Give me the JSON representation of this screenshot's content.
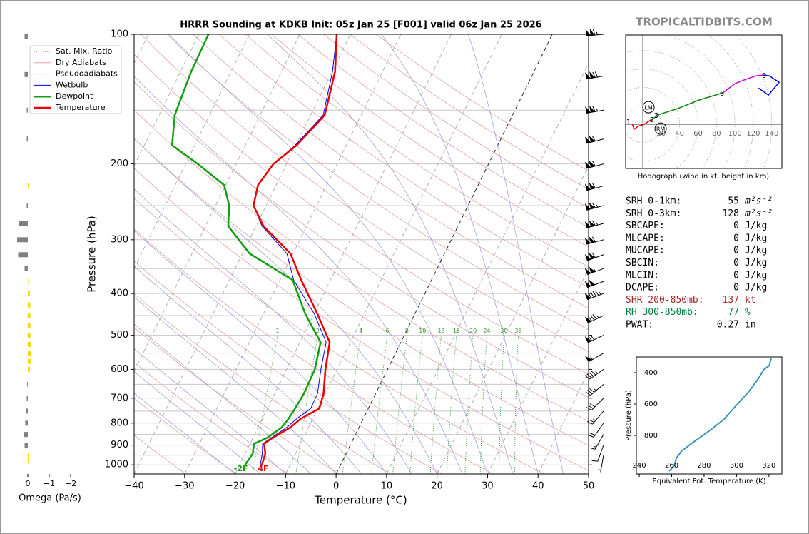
{
  "header": {
    "site": "TROPICALTIDBITS.COM"
  },
  "chart_data": [
    {
      "type": "skewt",
      "title": "HRRR Sounding at KDKB Init: 05z Jan 25 [F001] valid 06z Jan 25 2026",
      "xlabel": "Temperature (°C)",
      "ylabel": "Pressure (hPa)",
      "xlim": [
        -40,
        50
      ],
      "xticks": [
        {
          "value": -40,
          "label": "−40"
        },
        {
          "value": -30,
          "label": "−30"
        },
        {
          "value": -20,
          "label": "−20"
        },
        {
          "value": -10,
          "label": "−10"
        },
        0,
        10,
        20,
        30,
        40,
        50
      ],
      "ylim": [
        1050,
        100
      ],
      "log_y": true,
      "yticks": [
        100,
        200,
        300,
        400,
        500,
        600,
        700,
        800,
        900,
        1000
      ],
      "y_minor_ticks": [
        150,
        250,
        350,
        450,
        550,
        650,
        750,
        850,
        950
      ],
      "grid": true,
      "y": [
        100,
        122,
        154,
        181,
        200,
        224,
        250,
        279,
        323,
        372,
        446,
        519,
        600,
        684,
        740,
        782,
        819,
        866,
        893,
        942,
        1000
      ],
      "reference_lines": [
        {
          "name": "Sat. Mix. Ratio",
          "color": "#2e9a2e",
          "values": [
            1,
            2,
            4,
            6,
            8,
            10,
            13,
            16,
            20,
            24,
            30,
            36
          ]
        },
        {
          "name": "Dry Adiabats",
          "color": "#e2a4a4"
        },
        {
          "name": "Pseudoadiabats",
          "color": "#a4a4e2"
        }
      ],
      "series": [
        {
          "name": "Wetbulb",
          "color": "#0000ee",
          "width": 1,
          "values": [
            -42.7,
            -39.9,
            -37.5,
            -40.1,
            -42.6,
            -43.6,
            -42.5,
            -38.8,
            -31.2,
            -27.3,
            -19.9,
            -14.8,
            -13.2,
            -11.5,
            -11.4,
            -13.2,
            -14.3,
            -16.4,
            -17.5,
            -16.6,
            -15.9
          ]
        },
        {
          "name": "Dewpoint",
          "color": "#10a010",
          "width": 2.5,
          "values": [
            -68.1,
            -67.9,
            -66.9,
            -64.5,
            -57.6,
            -50.3,
            -47.3,
            -45.5,
            -38.6,
            -27.5,
            -21.7,
            -15.9,
            -14.4,
            -14.2,
            -14.5,
            -14.8,
            -15.3,
            -17.2,
            -19.2,
            -18.5,
            -18.9
          ]
        },
        {
          "name": "Temperature",
          "color": "#ee0000",
          "width": 2.5,
          "values": [
            -42.7,
            -39.4,
            -37.2,
            -39.8,
            -42.6,
            -43.6,
            -42.5,
            -38.5,
            -30.5,
            -25.8,
            -19.3,
            -14.1,
            -12.3,
            -10.3,
            -9.7,
            -12.4,
            -13.6,
            -16.1,
            -17.2,
            -16.0,
            -15.6
          ]
        }
      ],
      "annotations": [
        {
          "text": "-2F",
          "series": 1
        },
        {
          "text": "4F",
          "series": 2
        }
      ],
      "winds": {
        "pressure": [
          100,
          125,
          150,
          175,
          200,
          225,
          250,
          275,
          300,
          325,
          350,
          375,
          400,
          450,
          500,
          550,
          600,
          650,
          700,
          750,
          800,
          850,
          900,
          950
        ],
        "speed": [
          115,
          120,
          115,
          110,
          110,
          110,
          115,
          115,
          110,
          110,
          105,
          100,
          95,
          85,
          70,
          55,
          45,
          35,
          30,
          25,
          20,
          15,
          10,
          5
        ],
        "direction": [
          265,
          260,
          260,
          255,
          255,
          255,
          255,
          255,
          255,
          250,
          250,
          250,
          250,
          245,
          245,
          240,
          235,
          230,
          225,
          220,
          215,
          210,
          200,
          190
        ]
      },
      "legend": "upper left"
    },
    {
      "type": "hodograph",
      "xlabel": "Hodograph (wind in kt, height in km)",
      "xlim": [
        -18.6,
        151
      ],
      "ylim": [
        -48,
        97
      ],
      "xticks": [
        20,
        40,
        60,
        80,
        100,
        120,
        140
      ],
      "series": [
        {
          "color": "#ee0000",
          "u": [
            -11.6,
            -9.3,
            -5.4,
            1.6,
            8.5
          ],
          "v": [
            0.8,
            -5.4,
            -2.3,
            0,
            4.7
          ]
        },
        {
          "color": "#108a10",
          "u": [
            8.5,
            18.6,
            38,
            61.2,
            86.8
          ],
          "v": [
            4.7,
            10.9,
            17.1,
            26.4,
            34.1
          ]
        },
        {
          "color": "#c000d0",
          "u": [
            86.8,
            100,
            111.6,
            123.3,
            131
          ],
          "v": [
            34.1,
            44.2,
            48.8,
            52.7,
            53.5
          ]
        },
        {
          "color": "#0000ee",
          "u": [
            131,
            137.2,
            148,
            136.4,
            125.6
          ],
          "v": [
            53.5,
            52.7,
            45.7,
            31.8,
            39.5
          ]
        }
      ],
      "height_labels": [
        {
          "text": "1",
          "u": -15.5,
          "v": 2.3
        },
        {
          "text": "2",
          "u": 10,
          "v": 4.6
        },
        {
          "text": "3",
          "u": 14.7,
          "v": 9.3
        },
        {
          "text": "6",
          "u": 86,
          "v": 33.3
        },
        {
          "text": "9",
          "u": 131.8,
          "v": 52.7
        }
      ],
      "storm_motion": [
        {
          "label": "LM",
          "u": 6.2,
          "v": 18.6
        },
        {
          "label": "RM",
          "u": 19.4,
          "v": -4.7
        }
      ]
    },
    {
      "type": "line",
      "xlabel": "Equivalent Pot. Temperature (K)",
      "ylabel": "Pressure (hPa)",
      "xlim": [
        238.2,
        328
      ],
      "xticks": [
        240,
        260,
        280,
        300,
        320
      ],
      "ylim": [
        1045,
        300
      ],
      "yticks": [
        400,
        600,
        800
      ],
      "y": [
        305,
        355,
        382,
        436,
        518,
        618,
        695,
        768,
        855,
        900,
        945,
        991,
        1027
      ],
      "series": [
        {
          "color": "#3a96b4",
          "values": [
            321.5,
            320.2,
            316.7,
            313.6,
            307.8,
            299,
            292.4,
            283.6,
            271.7,
            266,
            262.9,
            261.6,
            258.5
          ]
        }
      ]
    },
    {
      "type": "bar",
      "orientation": "horizontal",
      "xlabel": "Omega (Pa/s)",
      "xlim": [
        0.5,
        -2.5
      ],
      "xticks": [
        0,
        {
          "value": -1,
          "label": "−1"
        },
        {
          "value": -2,
          "label": "−2"
        }
      ],
      "ylim": [
        1050,
        100
      ],
      "log_y": true,
      "positive_color": "#808080",
      "negative_color": "#ffd700",
      "y": [
        101,
        124,
        150,
        175,
        225,
        250,
        275,
        300,
        325,
        350,
        375,
        400,
        425,
        450,
        475,
        500,
        525,
        550,
        575,
        600,
        650,
        700,
        750,
        800,
        850,
        900,
        950,
        975
      ],
      "values": [
        0.15,
        0.15,
        0.05,
        0.05,
        -0.03,
        0.05,
        0.4,
        0.5,
        0.45,
        0.15,
        -0.02,
        -0.1,
        -0.12,
        -0.12,
        -0.12,
        -0.12,
        -0.15,
        -0.15,
        -0.13,
        -0.1,
        0.03,
        0.05,
        0.1,
        0.12,
        0.18,
        0.15,
        -0.05,
        -0.05
      ]
    }
  ],
  "stats": {
    "rows": [
      {
        "label": "SRH 0-1km:",
        "value": 55,
        "unit": "m²s⁻²"
      },
      {
        "label": "SRH 0-3km:",
        "value": 128,
        "unit": "m²s⁻²"
      },
      {
        "label": "SBCAPE:",
        "value": 0,
        "unit": "J/kg"
      },
      {
        "label": "MLCAPE:",
        "value": 0,
        "unit": "J/kg"
      },
      {
        "label": "MUCAPE:",
        "value": 0,
        "unit": "J/kg"
      },
      {
        "label": "SBCIN:",
        "value": 0,
        "unit": "J/kg"
      },
      {
        "label": "MLCIN:",
        "value": 0,
        "unit": "J/kg"
      },
      {
        "label": "DCAPE:",
        "value": 0,
        "unit": "J/kg"
      },
      {
        "label": "SHR 200-850mb:",
        "value": 137,
        "unit": "kt",
        "color": "#a52a2a"
      },
      {
        "label": "RH 300-850mb:",
        "value": 77,
        "unit": "%",
        "color": "#008040"
      },
      {
        "label": "PWAT:",
        "value": 0.27,
        "unit": "in"
      }
    ]
  }
}
